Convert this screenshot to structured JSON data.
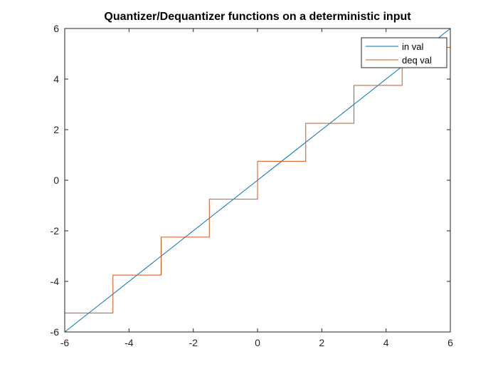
{
  "chart_data": {
    "type": "line",
    "title": "Quantizer/Dequantizer functions on a deterministic input",
    "xlabel": "",
    "ylabel": "",
    "xlim": [
      -6,
      6
    ],
    "ylim": [
      -6,
      6
    ],
    "xticks": [
      -6,
      -4,
      -2,
      0,
      2,
      4,
      6
    ],
    "yticks": [
      -6,
      -4,
      -2,
      0,
      2,
      4,
      6
    ],
    "xtick_labels": [
      "-6",
      "-4",
      "-2",
      "0",
      "2",
      "4",
      "6"
    ],
    "ytick_labels": [
      "-6",
      "-4",
      "-2",
      "0",
      "2",
      "4",
      "6"
    ],
    "grid": false,
    "box": true,
    "legend_position": "top-right",
    "series": [
      {
        "name": "in val",
        "color": "#0072bd",
        "kind": "line",
        "x": [
          -6,
          6
        ],
        "y": [
          -6,
          6
        ]
      },
      {
        "name": "deq val",
        "color": "#d95319",
        "kind": "step",
        "x": [
          -6,
          -4.5,
          -4.5,
          -3,
          -3,
          -1.5,
          -1.5,
          0,
          0,
          1.5,
          1.5,
          3,
          3,
          4.5,
          4.5,
          6
        ],
        "y": [
          -5.25,
          -5.25,
          -3.75,
          -3.75,
          -2.25,
          -2.25,
          -0.75,
          -0.75,
          0.75,
          0.75,
          2.25,
          2.25,
          3.75,
          3.75,
          5.25,
          5.25
        ]
      }
    ]
  }
}
